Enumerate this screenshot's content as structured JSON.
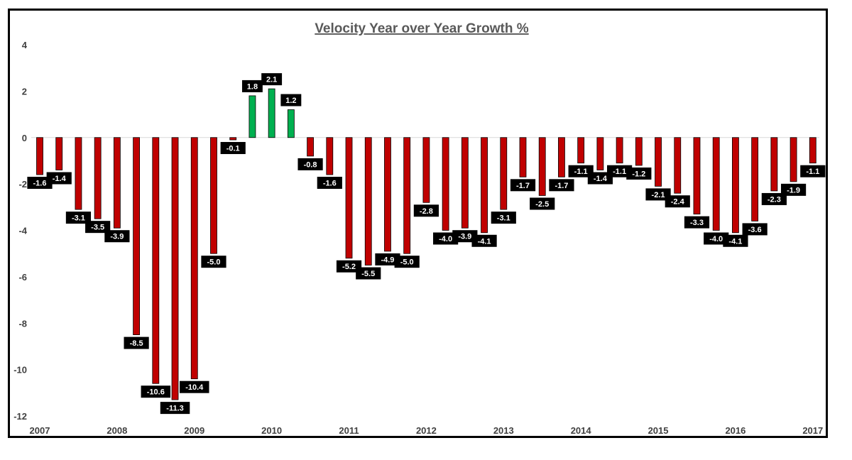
{
  "chart_data": {
    "type": "bar",
    "title": "Velocity Year over Year Growth %",
    "xlabel": "",
    "ylabel": "",
    "ylim": [
      -12,
      4
    ],
    "yticks": [
      4,
      2,
      0,
      -2,
      -4,
      -6,
      -8,
      -10,
      -12
    ],
    "year_labels": [
      "2007",
      "2008",
      "2009",
      "2010",
      "2011",
      "2012",
      "2013",
      "2014",
      "2015",
      "2016",
      "2017"
    ],
    "values": [
      -1.6,
      -1.4,
      -3.1,
      -3.5,
      -3.9,
      -8.5,
      -10.6,
      -11.3,
      -10.4,
      -5.0,
      -0.1,
      1.8,
      2.1,
      1.2,
      -0.8,
      -1.6,
      -5.2,
      -5.5,
      -4.9,
      -5.0,
      -2.8,
      -4.0,
      -3.9,
      -4.1,
      -3.1,
      -1.7,
      -2.5,
      -1.7,
      -1.1,
      -1.4,
      -1.1,
      -1.2,
      -2.1,
      -2.4,
      -3.3,
      -4.0,
      -4.1,
      -3.6,
      -2.3,
      -1.9,
      -1.1
    ],
    "data_labels": [
      "-1.6",
      "-1.4",
      "-3.1",
      "-3.5",
      "-3.9",
      "-8.5",
      "-10.6",
      "-11.3",
      "-10.4",
      "-5.0",
      "-0.1",
      "1.8",
      "2.1",
      "1.2",
      "-0.8",
      "-1.6",
      "-5.2",
      "-5.5",
      "-4.9",
      "-5.0",
      "-2.8",
      "-4.0",
      "-3.9",
      "-4.1",
      "-3.1",
      "-1.7",
      "-2.5",
      "-1.7",
      "-1.1",
      "-1.4",
      "-1.1",
      "-1.2",
      "-2.1",
      "-2.4",
      "-3.3",
      "-4.0",
      "-4.1",
      "-3.6",
      "-2.3",
      "-1.9",
      "-1.1"
    ],
    "colors": {
      "negative": "#C00000",
      "positive": "#00B050",
      "label_bg": "#000000",
      "label_text": "#FFFFFF",
      "zero_line": "#D9D9D9"
    }
  }
}
